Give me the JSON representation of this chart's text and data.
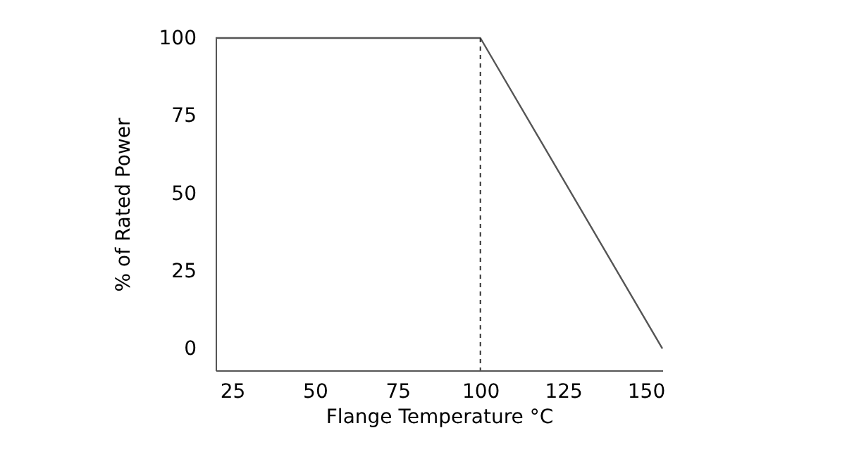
{
  "chart_data": {
    "type": "line",
    "xlabel": "Flange Temperature °C",
    "ylabel": "% of Rated Power",
    "x": [
      20,
      100,
      155
    ],
    "series": [
      {
        "color": "#555555",
        "values": [
          100,
          100,
          0
        ]
      }
    ],
    "xlim": [
      20,
      155
    ],
    "xticks": [
      25,
      50,
      75,
      100,
      125,
      150
    ],
    "ylim": [
      -7,
      100
    ],
    "yticks": [
      0,
      25,
      50,
      75,
      100
    ],
    "ref_lines": [
      {
        "axis": "x",
        "value": 100,
        "color": "#333333",
        "line_style": "dashed"
      }
    ],
    "grid": false,
    "marker": "none",
    "line_style": "solid"
  }
}
